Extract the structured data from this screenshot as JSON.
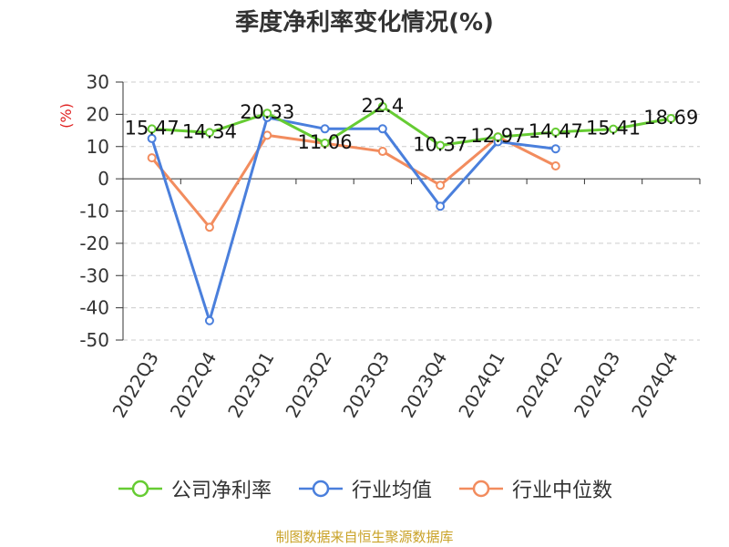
{
  "chart_data": {
    "type": "line",
    "title": "季度净利率变化情况(%)",
    "ylabel": "(%)",
    "xlabel": "",
    "ylim": [
      -50,
      30
    ],
    "yticks": [
      30,
      20,
      10,
      0,
      -10,
      -20,
      -30,
      -40,
      -50
    ],
    "grid": true,
    "legend_position": "bottom",
    "categories": [
      "2022Q3",
      "2022Q4",
      "2023Q1",
      "2023Q2",
      "2023Q3",
      "2023Q4",
      "2024Q1",
      "2024Q2",
      "2024Q3",
      "2024Q4"
    ],
    "series": [
      {
        "name": "公司净利率",
        "color": "#66cc33",
        "values": [
          15.47,
          14.34,
          20.33,
          11.06,
          22.4,
          10.37,
          12.97,
          14.47,
          15.41,
          18.69
        ],
        "labels": [
          "15.47",
          "14.34",
          "20.33",
          "11.06",
          "22.4",
          "10.37",
          "12.97",
          "14.47",
          "15.41",
          "18.69"
        ]
      },
      {
        "name": "行业均值",
        "color": "#4a7fdc",
        "values": [
          12.5,
          -44,
          19,
          15.5,
          15.5,
          -8.5,
          11.5,
          9.3,
          null,
          null
        ]
      },
      {
        "name": "行业中位数",
        "color": "#f28c5e",
        "values": [
          6.5,
          -15,
          13.5,
          11,
          8.5,
          -2,
          13,
          4,
          null,
          null
        ]
      }
    ]
  },
  "source": "制图数据来自恒生聚源数据库"
}
